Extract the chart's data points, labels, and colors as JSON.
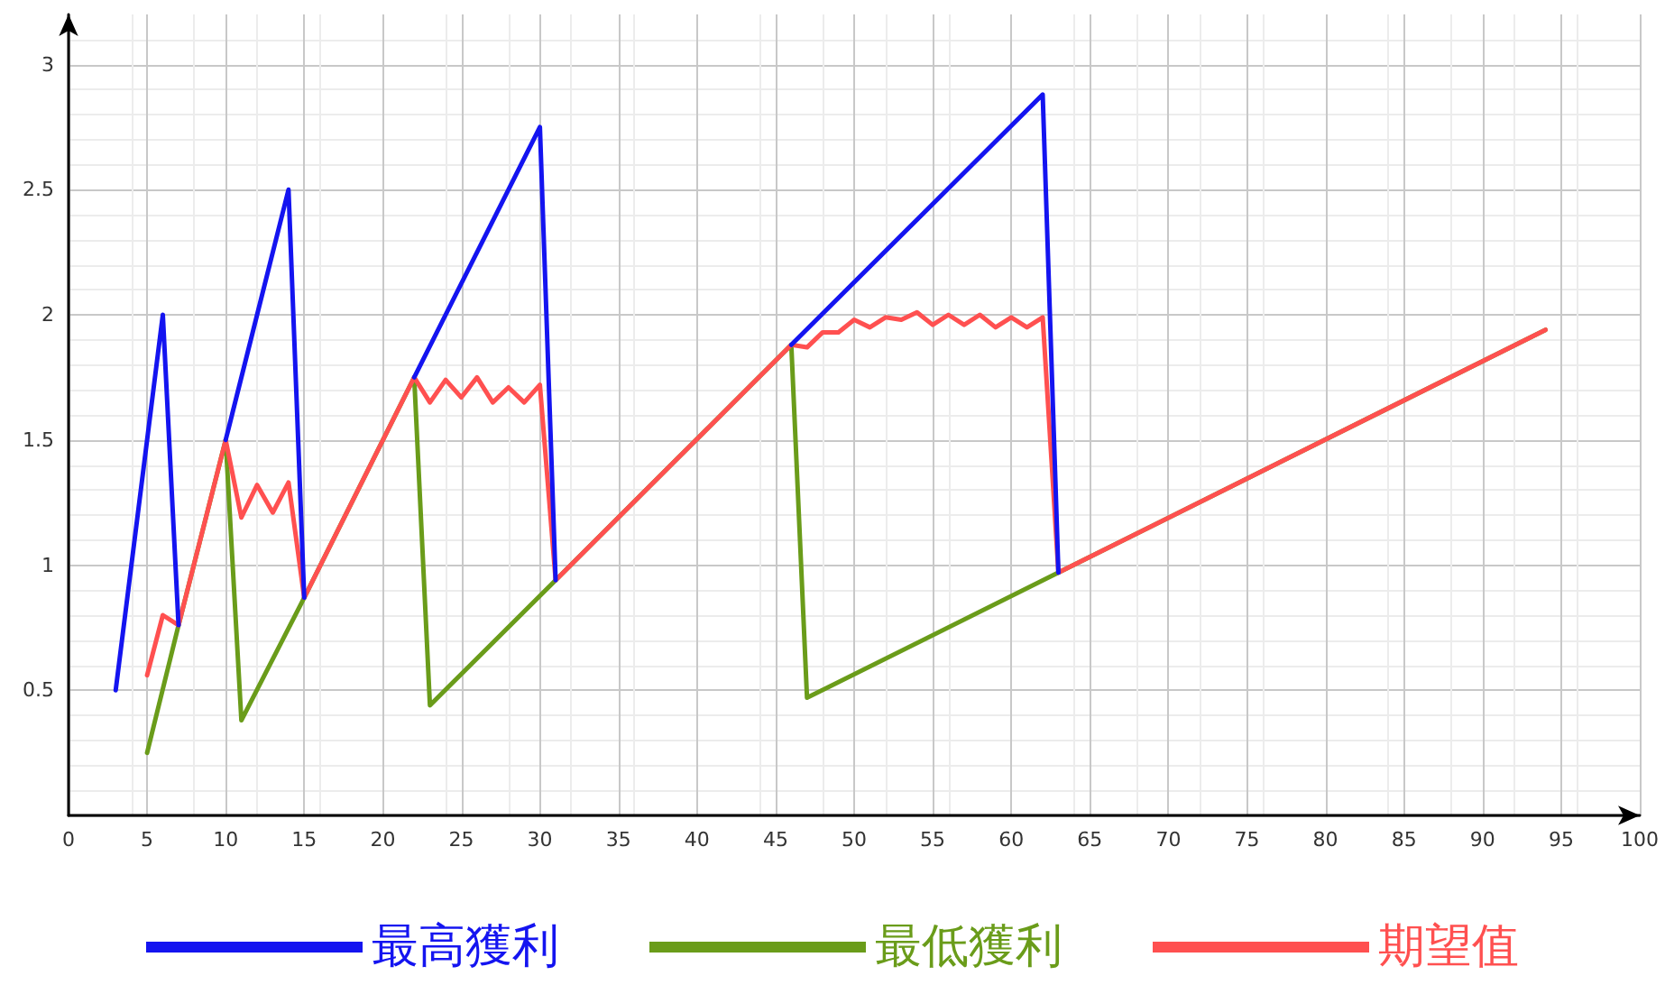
{
  "chart_data": {
    "type": "line",
    "marker": "none",
    "grid": true,
    "legend": "bottom",
    "xlim": [
      0,
      100
    ],
    "ylim": [
      0,
      3.2
    ],
    "xticks": [
      0,
      5,
      10,
      15,
      20,
      25,
      30,
      35,
      40,
      45,
      50,
      55,
      60,
      65,
      70,
      75,
      80,
      85,
      90,
      95,
      100
    ],
    "yticks": [
      {
        "value": 0,
        "label": null
      },
      0.5,
      1,
      1.5,
      2,
      2.5,
      3
    ],
    "series": [
      {
        "name": "最高獲利",
        "color": "#1414f0",
        "x": [
          3,
          6,
          7,
          8,
          10,
          14,
          15,
          18,
          22,
          30,
          31,
          40,
          46,
          62,
          63
        ],
        "values": [
          0.5,
          2.0,
          0.76,
          null,
          1.5,
          2.5,
          0.87,
          null,
          1.75,
          2.75,
          0.94,
          null,
          1.88,
          2.88,
          0.97
        ]
      },
      {
        "name": "最低獲利",
        "color": "#6a9c1a",
        "x": [
          5,
          7,
          10,
          11,
          15,
          22,
          23,
          31,
          46,
          47,
          63,
          94
        ],
        "values": [
          0.25,
          0.76,
          1.5,
          0.38,
          0.87,
          1.75,
          0.44,
          0.94,
          1.88,
          0.47,
          0.97,
          1.94
        ]
      },
      {
        "name": "期望值",
        "color": "#ff5050",
        "x": [
          5,
          6,
          7,
          10,
          11,
          12,
          13,
          14,
          15,
          22,
          23,
          24,
          25,
          26,
          27,
          28,
          29,
          30,
          31,
          46,
          47,
          48,
          49,
          50,
          51,
          52,
          53,
          54,
          55,
          56,
          57,
          58,
          59,
          60,
          61,
          62,
          63,
          94
        ],
        "values": [
          0.56,
          0.8,
          0.76,
          1.5,
          1.19,
          1.32,
          1.21,
          1.33,
          0.87,
          1.75,
          1.65,
          1.74,
          1.67,
          1.75,
          1.65,
          1.71,
          1.65,
          1.72,
          0.94,
          1.88,
          1.87,
          1.93,
          1.93,
          1.98,
          1.95,
          1.99,
          1.98,
          2.01,
          1.96,
          2.0,
          1.96,
          2.0,
          1.95,
          1.99,
          1.95,
          1.99,
          0.97,
          1.94
        ]
      }
    ]
  }
}
